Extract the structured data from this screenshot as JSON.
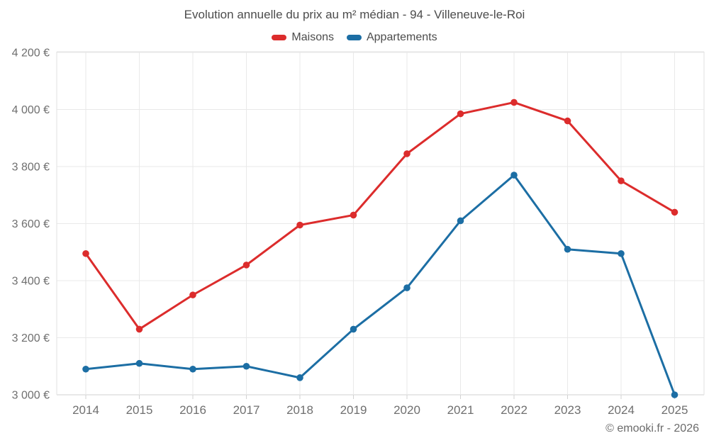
{
  "chart_data": {
    "type": "line",
    "title": "Evolution annuelle du prix au m² médian - 94 - Villeneuve-le-Roi",
    "categories": [
      "2014",
      "2015",
      "2016",
      "2017",
      "2018",
      "2019",
      "2020",
      "2021",
      "2022",
      "2023",
      "2024",
      "2025"
    ],
    "series": [
      {
        "name": "Maisons",
        "color": "#dc2c2c",
        "values": [
          3495,
          3230,
          3350,
          3455,
          3595,
          3630,
          3845,
          3985,
          4025,
          3960,
          3750,
          3640
        ]
      },
      {
        "name": "Appartements",
        "color": "#1c6ea4",
        "values": [
          3090,
          3110,
          3090,
          3100,
          3060,
          3230,
          3375,
          3610,
          3770,
          3510,
          3495,
          3000
        ]
      }
    ],
    "ylim": [
      3000,
      4200
    ],
    "y_ticks": [
      {
        "value": 3000,
        "label": "3 000 €"
      },
      {
        "value": 3200,
        "label": "3 200 €"
      },
      {
        "value": 3400,
        "label": "3 400 €"
      },
      {
        "value": 3600,
        "label": "3 600 €"
      },
      {
        "value": 3800,
        "label": "3 800 €"
      },
      {
        "value": 4000,
        "label": "4 000 €"
      },
      {
        "value": 4200,
        "label": "4 200 €"
      }
    ],
    "grid": true,
    "legend_position": "top",
    "attribution": "© emooki.fr - 2026",
    "colors": {
      "grid": "#e9e9e9",
      "border": "#e2e2e2",
      "axis": "#d2d2d2",
      "tick_text": "#6f6f6f",
      "title_text": "#4c4c4c"
    }
  }
}
